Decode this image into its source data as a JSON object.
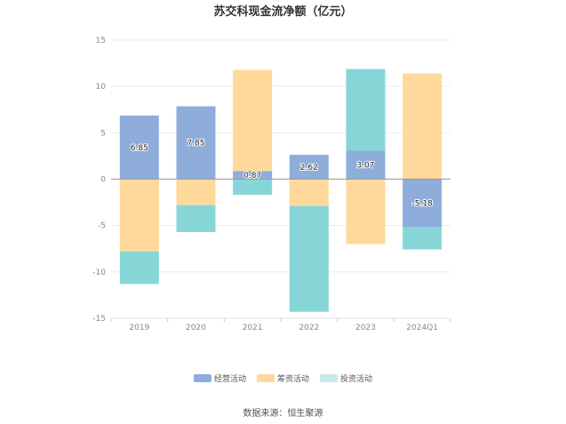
{
  "title": "苏交科现金流净额（亿元）",
  "source": "数据来源：恒生聚源",
  "chart_data": {
    "type": "bar",
    "stacked": true,
    "categories": [
      "2019",
      "2020",
      "2021",
      "2022",
      "2023",
      "2024Q1"
    ],
    "ylim": [
      -15,
      15
    ],
    "yticks": [
      15,
      10,
      5,
      0,
      -5,
      -10,
      -15
    ],
    "grid": true,
    "legend_position": "bottom",
    "series": [
      {
        "name": "经营活动",
        "color": "#8eaddb",
        "values": [
          6.85,
          7.85,
          0.87,
          2.62,
          3.07,
          -5.18
        ],
        "labels": [
          "6.85",
          "7.85",
          "0.87",
          "2.62",
          "3.07",
          "-5.18"
        ]
      },
      {
        "name": "筹资活动",
        "color": "#fed99b",
        "values": [
          -7.8,
          -2.8,
          10.9,
          -2.9,
          -7.0,
          11.4
        ]
      },
      {
        "name": "投资活动",
        "color": "#86d6d8",
        "values": [
          -3.5,
          -2.9,
          -1.7,
          -11.4,
          8.8,
          -2.4
        ]
      }
    ],
    "legend_colors": [
      "#8eaddb",
      "#fed99b",
      "#c5e9ea"
    ]
  }
}
